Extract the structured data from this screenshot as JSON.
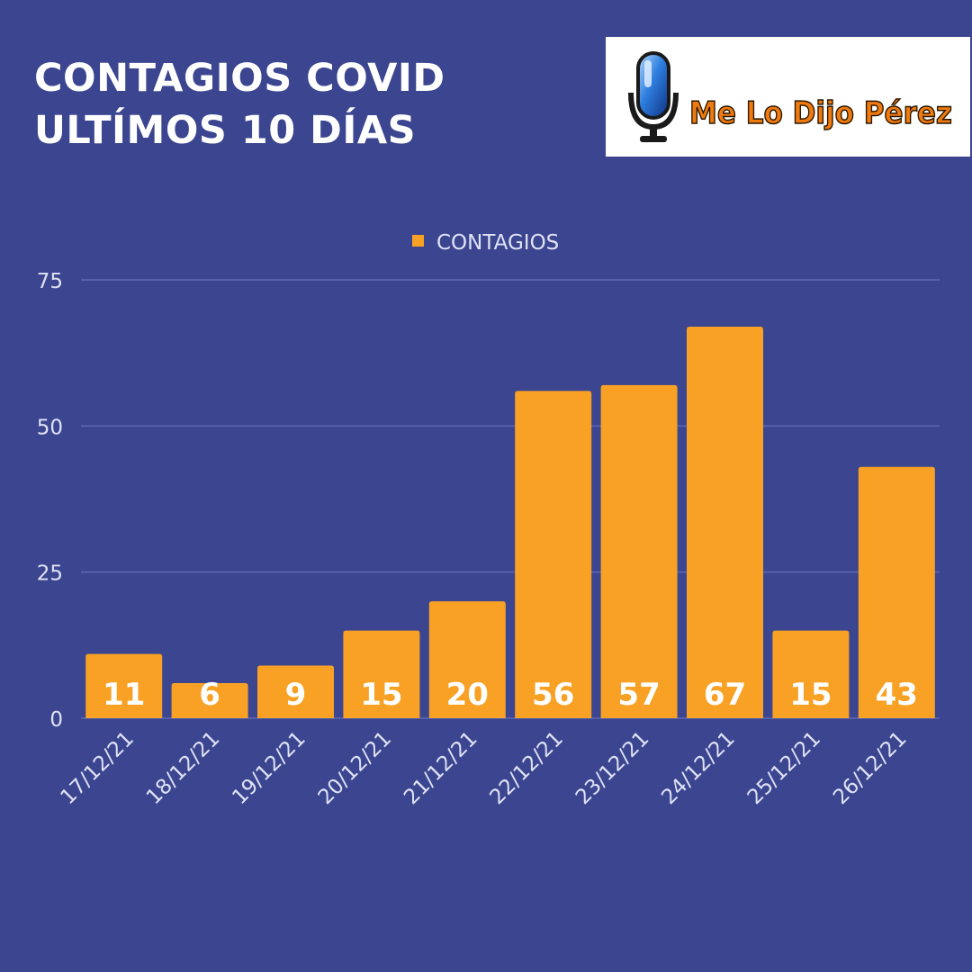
{
  "headline": {
    "line1": "CONTAGIOS COVID",
    "line2": "ULTÍMOS 10 DÍAS"
  },
  "logo": {
    "text": "Me Lo Dijo Pérez",
    "icon": "microphone-icon"
  },
  "colors": {
    "background": "#3b4590",
    "bar": "#f8a124",
    "gridline": "#5e69b4",
    "text": "#ffffff",
    "axis_text": "#dfe2f4"
  },
  "chart_data": {
    "type": "bar",
    "categories": [
      "17/12/21",
      "18/12/21",
      "19/12/21",
      "20/12/21",
      "21/12/21",
      "22/12/21",
      "23/12/21",
      "24/12/21",
      "25/12/21",
      "26/12/21"
    ],
    "series": [
      {
        "name": "CONTAGIOS",
        "values": [
          11,
          6,
          9,
          15,
          20,
          56,
          57,
          67,
          15,
          43
        ]
      }
    ],
    "ylim": [
      0,
      75
    ],
    "yticks": [
      0,
      25,
      50,
      75
    ],
    "grid": true,
    "legend_position": "top-center",
    "data_labels": true,
    "xtick_rotation": -45
  }
}
